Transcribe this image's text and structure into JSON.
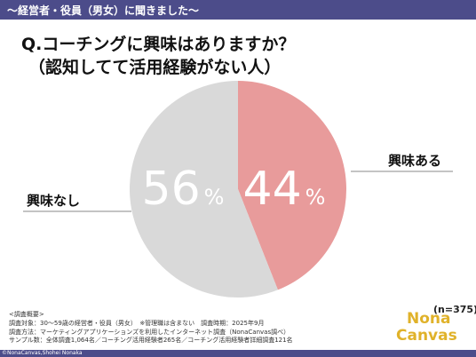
{
  "header": {
    "title": "〜経営者・役員（男女）に聞きました〜",
    "color": "#4c4c8a"
  },
  "question": {
    "line1": "Q.コーチングに興味はありますか？",
    "line2": "（認知してて活用経験がない人）"
  },
  "chart_data": {
    "type": "pie",
    "slices": [
      {
        "label": "興味ある",
        "value": 44,
        "value_label": "44",
        "unit": "%",
        "color": "#e89b9b"
      },
      {
        "label": "興味なし",
        "value": 56,
        "value_label": "56",
        "unit": "%",
        "color": "#d9d9d9"
      }
    ]
  },
  "sample_size": "(n=375)",
  "survey": {
    "heading": "<調査概要>",
    "lines": [
      "調査対象：30〜59歳の経営者・役員（男女）　※管理職は含まない　調査時期：2025年9月",
      "調査方法：マーケティングアプリケーションズを利用したインターネット調査（NonaCanvas調べ）",
      "サンプル数：全体調査1,064名／コーチング活用経験者265名／コーチング活用経験者詳細調査121名"
    ]
  },
  "logo": {
    "line1": "Nona",
    "line2": "Canvas",
    "color": "#e0b22a"
  },
  "footer": {
    "copyright": "©NonaCanvas,Shohei Nonaka"
  }
}
